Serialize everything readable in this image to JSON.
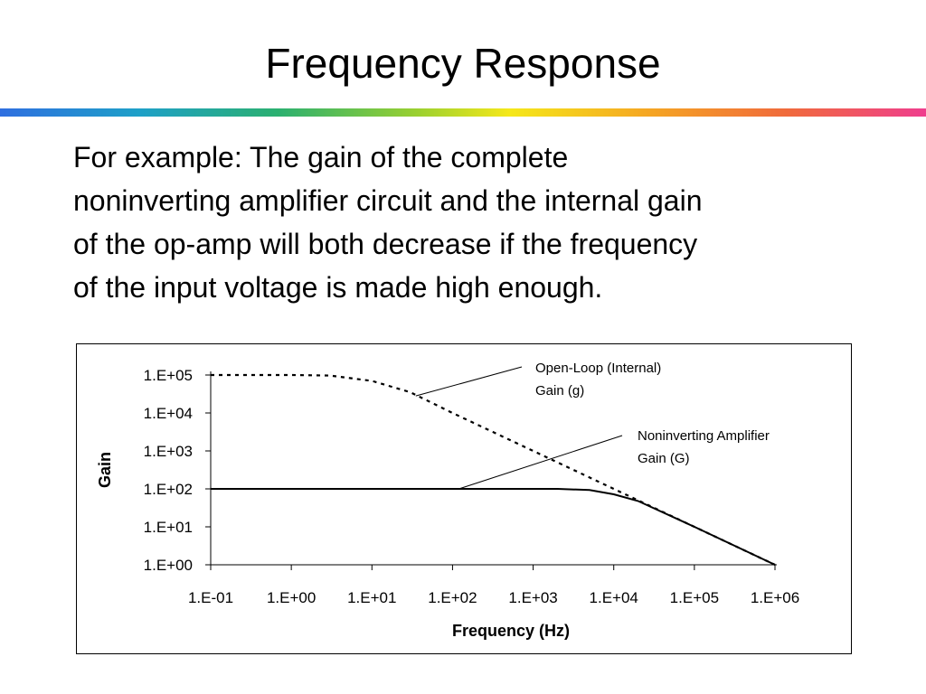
{
  "slide": {
    "title": "Frequency Response",
    "body_lines": [
      "For example:  The gain of the complete",
      "noninverting amplifier circuit and the internal gain",
      "of the op-amp will both decrease if the frequency",
      "of the input voltage is made high enough."
    ]
  },
  "chart_data": {
    "type": "line",
    "title": "",
    "xlabel": "Frequency (Hz)",
    "ylabel": "Gain",
    "x_scale": "log",
    "y_scale": "log",
    "xlim": [
      0.1,
      1000000
    ],
    "ylim": [
      1,
      100000
    ],
    "x_tick_labels": [
      "1.E-01",
      "1.E+00",
      "1.E+01",
      "1.E+02",
      "1.E+03",
      "1.E+04",
      "1.E+05",
      "1.E+06"
    ],
    "y_tick_labels": [
      "1.E+00",
      "1.E+01",
      "1.E+02",
      "1.E+03",
      "1.E+04",
      "1.E+05"
    ],
    "grid": false,
    "legend": "none",
    "series": [
      {
        "name": "Open-Loop (Internal) Gain (g)",
        "style": "dotted",
        "color": "#000000",
        "x": [
          0.1,
          1,
          3,
          10,
          30,
          100,
          1000,
          10000,
          100000,
          1000000
        ],
        "y": [
          100000,
          100000,
          97000,
          70000,
          35000,
          10000,
          1000,
          100,
          10,
          1
        ]
      },
      {
        "name": "Noninverting Amplifier Gain (G)",
        "style": "solid",
        "color": "#000000",
        "x": [
          0.1,
          1,
          10,
          100,
          1000,
          2000,
          5000,
          10000,
          20000,
          100000,
          1000000
        ],
        "y": [
          100,
          100,
          100,
          100,
          100,
          100,
          93,
          72,
          48,
          10,
          1
        ]
      }
    ],
    "annotations": [
      {
        "lines": [
          "Open-Loop (Internal)",
          "Gain (g)"
        ]
      },
      {
        "lines": [
          "Noninverting Amplifier",
          "Gain (G)"
        ]
      }
    ]
  }
}
